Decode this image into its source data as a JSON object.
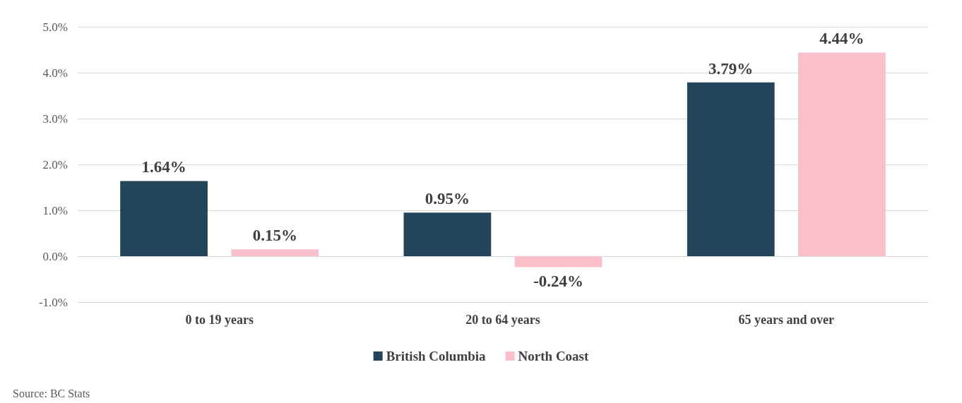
{
  "chart_data": {
    "type": "bar",
    "categories": [
      "0 to 19 years",
      "20 to 64 years",
      "65 years and over"
    ],
    "series": [
      {
        "name": "British Columbia",
        "color": "#234459",
        "values": [
          1.64,
          0.95,
          3.79
        ],
        "value_labels": [
          "1.64%",
          "0.95%",
          "3.79%"
        ]
      },
      {
        "name": "North Coast",
        "color": "#f9bfca",
        "values": [
          0.15,
          -0.24,
          4.44
        ],
        "value_labels": [
          "0.15%",
          "-0.24%",
          "4.44%"
        ]
      }
    ],
    "ylim": [
      -1,
      5
    ],
    "yticks": [
      {
        "value": -1,
        "label": "-1.0%"
      },
      {
        "value": 0,
        "label": "0.0%"
      },
      {
        "value": 1,
        "label": "1.0%"
      },
      {
        "value": 2,
        "label": "2.0%"
      },
      {
        "value": 3,
        "label": "3.0%"
      },
      {
        "value": 4,
        "label": "4.0%"
      },
      {
        "value": 5,
        "label": "5.0%"
      }
    ],
    "grid": "y",
    "legend": "bottom",
    "annotations": [
      "Source: BC Stats"
    ]
  }
}
